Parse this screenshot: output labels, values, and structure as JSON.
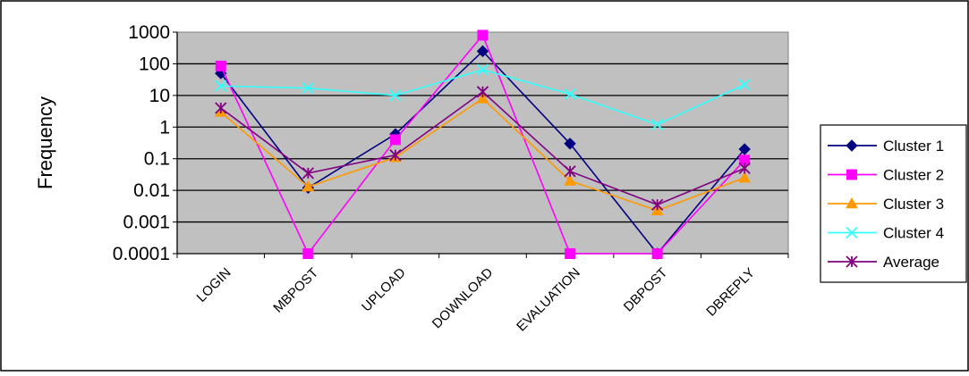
{
  "chart_data": {
    "type": "line",
    "title": "",
    "xlabel": "",
    "ylabel": "Frequency",
    "yscale": "log",
    "ylim": [
      0.0001,
      1000
    ],
    "yticks": [
      "1000",
      "100",
      "10",
      "1",
      "0.1",
      "0.01",
      "0.001",
      "0.0001"
    ],
    "categories": [
      "LOGIN",
      "MBPOST",
      "UPLOAD",
      "DOWNLOAD",
      "EVALUATION",
      "DBPOST",
      "DBREPLY"
    ],
    "grid": true,
    "plot_background": "#C0C0C0",
    "legend_position": "right",
    "series": [
      {
        "name": "Cluster 1",
        "color": "#000080",
        "marker": "diamond",
        "values": [
          50,
          0.012,
          0.6,
          250,
          0.3,
          0.0001,
          0.2
        ]
      },
      {
        "name": "Cluster 2",
        "color": "#FF00FF",
        "marker": "square",
        "values": [
          85,
          0.0001,
          0.4,
          800,
          0.0001,
          0.0001,
          0.09
        ]
      },
      {
        "name": "Cluster 3",
        "color": "#FF9900",
        "marker": "triangle",
        "values": [
          3,
          0.013,
          0.11,
          8,
          0.02,
          0.0023,
          0.025
        ]
      },
      {
        "name": "Cluster 4",
        "color": "#33FFFF",
        "marker": "x",
        "values": [
          20,
          17,
          10,
          65,
          11,
          1.2,
          22
        ]
      },
      {
        "name": "Average",
        "color": "#800080",
        "marker": "star",
        "values": [
          4,
          0.035,
          0.13,
          13,
          0.04,
          0.0035,
          0.05
        ]
      }
    ]
  }
}
